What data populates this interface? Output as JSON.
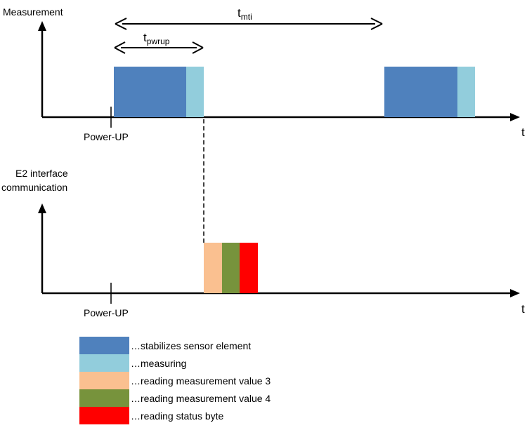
{
  "axes": {
    "top_label": "Measurement",
    "bottom_label_line1": "E2 interface",
    "bottom_label_line2": "communication",
    "time_symbol": "t",
    "power_up_label": "Power-UP"
  },
  "intervals": {
    "mti": {
      "base": "t",
      "sub": "mti"
    },
    "pwrup": {
      "base": "t",
      "sub": "pwrup"
    }
  },
  "colors": {
    "stabilize": "#4f81bd",
    "measuring": "#92cddc",
    "value3": "#fac090",
    "value4": "#77933c",
    "status": "#ff0000"
  },
  "legend": [
    {
      "key": "stabilize",
      "text": "…stabilizes sensor element"
    },
    {
      "key": "measuring",
      "text": "…measuring"
    },
    {
      "key": "value3",
      "text": "…reading measurement value 3"
    },
    {
      "key": "value4",
      "text": "…reading measurement value 4"
    },
    {
      "key": "status",
      "text": "…reading status byte"
    }
  ]
}
